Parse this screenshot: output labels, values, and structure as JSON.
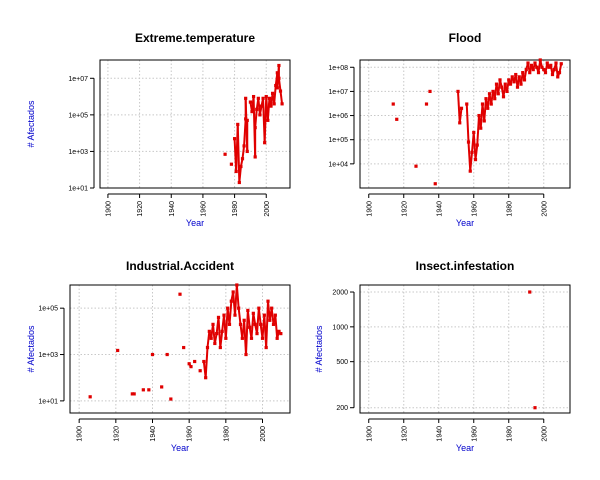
{
  "colors": {
    "points": "#e00000",
    "axis_labels": "#0000cc",
    "grid": "#c8c8c8"
  },
  "chart_data": [
    {
      "type": "scatter",
      "title": "Extreme.temperature",
      "xlabel": "Year",
      "ylabel": "# Afectados",
      "xlim": [
        1895,
        2015
      ],
      "ylim": [
        10,
        100000000
      ],
      "y_scale": "log",
      "grid": true,
      "x_ticks": [
        1900,
        1920,
        1940,
        1960,
        1980,
        2000
      ],
      "y_ticks": [
        10,
        1000,
        100000,
        10000000
      ],
      "y_tick_labels": [
        "1e+01",
        "1e+03",
        "1e+05",
        "1e+07"
      ],
      "points": [
        [
          1974,
          700
        ],
        [
          1978,
          200
        ],
        [
          1980,
          5000
        ],
        [
          1981,
          80
        ],
        [
          1982,
          30000
        ],
        [
          1983,
          20
        ],
        [
          1984,
          150
        ],
        [
          1985,
          400
        ],
        [
          1986,
          2000
        ],
        [
          1987,
          60000
        ],
        [
          1987,
          800000
        ],
        [
          1988,
          1000
        ],
        [
          1988,
          50000
        ],
        [
          1990,
          500000
        ],
        [
          1991,
          150000
        ],
        [
          1992,
          1000000
        ],
        [
          1993,
          500
        ],
        [
          1993,
          20000
        ],
        [
          1994,
          200000
        ],
        [
          1995,
          800000
        ],
        [
          1996,
          100000
        ],
        [
          1997,
          300000
        ],
        [
          1998,
          800000
        ],
        [
          1999,
          3000
        ],
        [
          2000,
          1000000
        ],
        [
          2001,
          50000
        ],
        [
          2002,
          800000
        ],
        [
          2003,
          300000
        ],
        [
          2004,
          1500000
        ],
        [
          2005,
          400000
        ],
        [
          2006,
          4000000
        ],
        [
          2007,
          20000000
        ],
        [
          2007,
          3000000
        ],
        [
          2008,
          50000000
        ],
        [
          2008,
          10000000
        ],
        [
          2009,
          2000000
        ],
        [
          2010,
          400000
        ]
      ]
    },
    {
      "type": "scatter",
      "title": "Flood",
      "xlabel": "Year",
      "ylabel": "",
      "xlim": [
        1895,
        2015
      ],
      "ylim": [
        1000,
        200000000
      ],
      "y_scale": "log",
      "grid": true,
      "x_ticks": [
        1900,
        1920,
        1940,
        1960,
        1980,
        2000
      ],
      "y_ticks": [
        10000,
        100000,
        1000000,
        10000000,
        100000000
      ],
      "y_tick_labels": [
        "1e+04",
        "1e+05",
        "1e+06",
        "1e+07",
        "1e+08"
      ],
      "points": [
        [
          1914,
          3000000
        ],
        [
          1916,
          700000
        ],
        [
          1927,
          8000
        ],
        [
          1933,
          3000000
        ],
        [
          1935,
          10000000
        ],
        [
          1938,
          1500
        ],
        [
          1951,
          10000000
        ],
        [
          1952,
          500000
        ],
        [
          1953,
          2000000
        ],
        [
          1956,
          3000000
        ],
        [
          1957,
          80000
        ],
        [
          1958,
          5000
        ],
        [
          1959,
          30000
        ],
        [
          1960,
          200000
        ],
        [
          1961,
          15000
        ],
        [
          1962,
          60000
        ],
        [
          1963,
          1000000
        ],
        [
          1964,
          300000
        ],
        [
          1965,
          3000000
        ],
        [
          1966,
          600000
        ],
        [
          1967,
          5000000
        ],
        [
          1968,
          2000000
        ],
        [
          1969,
          8000000
        ],
        [
          1970,
          3000000
        ],
        [
          1971,
          10000000
        ],
        [
          1972,
          5000000
        ],
        [
          1973,
          20000000
        ],
        [
          1974,
          8000000
        ],
        [
          1975,
          30000000
        ],
        [
          1976,
          15000000
        ],
        [
          1977,
          6000000
        ],
        [
          1978,
          20000000
        ],
        [
          1979,
          10000000
        ],
        [
          1980,
          30000000
        ],
        [
          1981,
          20000000
        ],
        [
          1982,
          40000000
        ],
        [
          1983,
          25000000
        ],
        [
          1984,
          50000000
        ],
        [
          1985,
          15000000
        ],
        [
          1986,
          40000000
        ],
        [
          1987,
          20000000
        ],
        [
          1988,
          60000000
        ],
        [
          1989,
          30000000
        ],
        [
          1990,
          80000000
        ],
        [
          1991,
          150000000
        ],
        [
          1992,
          60000000
        ],
        [
          1993,
          120000000
        ],
        [
          1994,
          80000000
        ],
        [
          1995,
          150000000
        ],
        [
          1996,
          100000000
        ],
        [
          1997,
          60000000
        ],
        [
          1998,
          200000000
        ],
        [
          1999,
          100000000
        ],
        [
          2000,
          80000000
        ],
        [
          2001,
          60000000
        ],
        [
          2002,
          150000000
        ],
        [
          2003,
          100000000
        ],
        [
          2004,
          120000000
        ],
        [
          2005,
          50000000
        ],
        [
          2006,
          80000000
        ],
        [
          2007,
          150000000
        ],
        [
          2008,
          40000000
        ],
        [
          2009,
          60000000
        ],
        [
          2010,
          140000000
        ]
      ]
    },
    {
      "type": "scatter",
      "title": "Industrial.Accident",
      "xlabel": "Year",
      "ylabel": "# Afectados",
      "xlim": [
        1895,
        2015
      ],
      "ylim": [
        3,
        1000000
      ],
      "y_scale": "log",
      "grid": true,
      "x_ticks": [
        1900,
        1920,
        1940,
        1960,
        1980,
        2000
      ],
      "y_ticks": [
        10,
        1000,
        100000
      ],
      "y_tick_labels": [
        "1e+01",
        "1e+03",
        "1e+05"
      ],
      "points": [
        [
          1906,
          15
        ],
        [
          1921,
          1500
        ],
        [
          1929,
          20
        ],
        [
          1930,
          20
        ],
        [
          1935,
          30
        ],
        [
          1938,
          30
        ],
        [
          1940,
          1000
        ],
        [
          1945,
          40
        ],
        [
          1948,
          1000
        ],
        [
          1950,
          12
        ],
        [
          1955,
          400000
        ],
        [
          1957,
          2000
        ],
        [
          1960,
          400
        ],
        [
          1961,
          300
        ],
        [
          1963,
          500
        ],
        [
          1966,
          200
        ],
        [
          1968,
          500
        ],
        [
          1969,
          100
        ],
        [
          1970,
          2000
        ],
        [
          1971,
          10000
        ],
        [
          1972,
          5000
        ],
        [
          1973,
          20000
        ],
        [
          1974,
          3000
        ],
        [
          1975,
          8000
        ],
        [
          1976,
          40000
        ],
        [
          1977,
          2000
        ],
        [
          1978,
          10000
        ],
        [
          1979,
          50000
        ],
        [
          1980,
          5000
        ],
        [
          1981,
          100000
        ],
        [
          1982,
          20000
        ],
        [
          1983,
          200000
        ],
        [
          1984,
          500000
        ],
        [
          1985,
          50000
        ],
        [
          1986,
          1000000
        ],
        [
          1987,
          100000
        ],
        [
          1988,
          20000
        ],
        [
          1989,
          5000
        ],
        [
          1990,
          30000
        ],
        [
          1991,
          1000
        ],
        [
          1992,
          80000
        ],
        [
          1993,
          15000
        ],
        [
          1994,
          5000
        ],
        [
          1995,
          60000
        ],
        [
          1996,
          20000
        ],
        [
          1997,
          8000
        ],
        [
          1998,
          100000
        ],
        [
          1999,
          20000
        ],
        [
          2000,
          5000
        ],
        [
          2001,
          50000
        ],
        [
          2002,
          2000
        ],
        [
          2003,
          200000
        ],
        [
          2004,
          30000
        ],
        [
          2005,
          100000
        ],
        [
          2006,
          20000
        ],
        [
          2007,
          50000
        ],
        [
          2008,
          5000
        ],
        [
          2009,
          10000
        ],
        [
          2010,
          8000
        ]
      ]
    },
    {
      "type": "scatter",
      "title": "Insect.infestation",
      "xlabel": "Year",
      "ylabel": "# Afectados",
      "xlim": [
        1895,
        2015
      ],
      "ylim": [
        180,
        2300
      ],
      "y_scale": "log",
      "grid": true,
      "x_ticks": [
        1900,
        1920,
        1940,
        1960,
        1980,
        2000
      ],
      "y_ticks": [
        200,
        500,
        1000,
        2000
      ],
      "y_tick_labels": [
        "200",
        "500",
        "1000",
        "2000"
      ],
      "points": [
        [
          1992,
          2000
        ],
        [
          1995,
          200
        ]
      ]
    }
  ]
}
